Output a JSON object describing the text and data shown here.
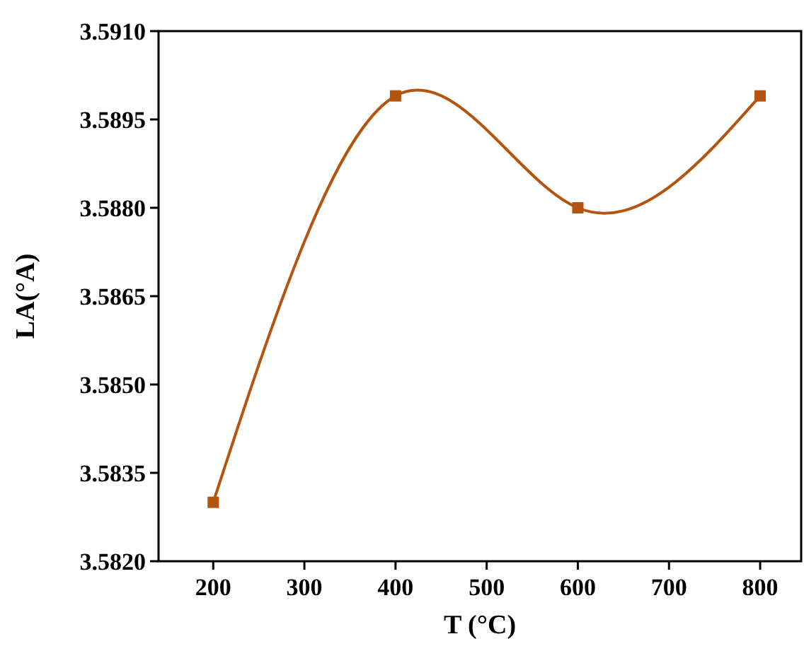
{
  "chart_data": {
    "type": "line",
    "xlabel": "T (°C)",
    "ylabel": "LA(°A)",
    "x": [
      200,
      400,
      600,
      800
    ],
    "series": [
      {
        "color": "#b5540f",
        "values": [
          3.583,
          3.5899,
          3.588,
          3.5899
        ]
      }
    ],
    "xlim": [
      140,
      845
    ],
    "xticks": [
      200,
      300,
      400,
      500,
      600,
      700,
      800
    ],
    "ylim": [
      3.582,
      3.591
    ],
    "yticks": [
      {
        "value": 3.582,
        "label": "3.5820"
      },
      {
        "value": 3.5835,
        "label": "3.5835"
      },
      {
        "value": 3.585,
        "label": "3.5850"
      },
      {
        "value": 3.5865,
        "label": "3.5865"
      },
      {
        "value": 3.588,
        "label": "3.5880"
      },
      {
        "value": 3.5895,
        "label": "3.5895"
      },
      {
        "value": 3.591,
        "label": "3.5910"
      }
    ],
    "marker": "square",
    "line_style": "solid"
  }
}
